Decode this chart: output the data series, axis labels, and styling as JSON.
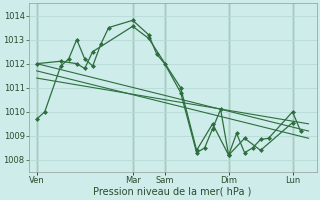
{
  "bg_color": "#ceecea",
  "grid_color": "#b8dbd8",
  "line_color": "#2d6e3e",
  "xlabel": "Pression niveau de la mer( hPa )",
  "ylim": [
    1007.5,
    1014.5
  ],
  "yticks": [
    1008,
    1009,
    1010,
    1011,
    1012,
    1013,
    1014
  ],
  "xlim": [
    0,
    36
  ],
  "day_labels": [
    "Ven",
    "Mar",
    "Sam",
    "Dim",
    "Lun"
  ],
  "day_positions": [
    1,
    13,
    17,
    25,
    33
  ],
  "vline_positions": [
    1,
    13,
    17,
    25,
    33
  ],
  "s1_x": [
    1,
    2,
    4,
    5,
    6,
    7,
    8,
    9,
    10,
    13,
    15,
    16,
    17,
    19,
    21,
    22,
    23,
    24,
    25,
    26,
    27,
    28,
    29,
    30,
    33,
    34
  ],
  "s1_y": [
    1009.7,
    1010.0,
    1011.9,
    1012.2,
    1013.0,
    1012.2,
    1011.9,
    1012.8,
    1013.5,
    1013.8,
    1013.2,
    1012.4,
    1012.0,
    1010.8,
    1008.3,
    1008.5,
    1009.3,
    1010.1,
    1008.2,
    1009.1,
    1008.3,
    1008.5,
    1008.85,
    1008.9,
    1010.0,
    1009.2
  ],
  "s2_x": [
    1,
    4,
    6,
    7,
    8,
    13,
    15,
    19,
    21,
    23,
    25,
    27,
    29,
    33
  ],
  "s2_y": [
    1012.0,
    1012.1,
    1012.0,
    1011.8,
    1012.5,
    1013.55,
    1013.05,
    1011.0,
    1008.4,
    1009.5,
    1008.2,
    1008.9,
    1008.4,
    1009.55
  ],
  "trend1_x": [
    1,
    35
  ],
  "trend1_y": [
    1012.0,
    1009.2
  ],
  "trend2_x": [
    1,
    35
  ],
  "trend2_y": [
    1011.7,
    1008.9
  ],
  "trend3_x": [
    1,
    35
  ],
  "trend3_y": [
    1011.4,
    1009.5
  ]
}
